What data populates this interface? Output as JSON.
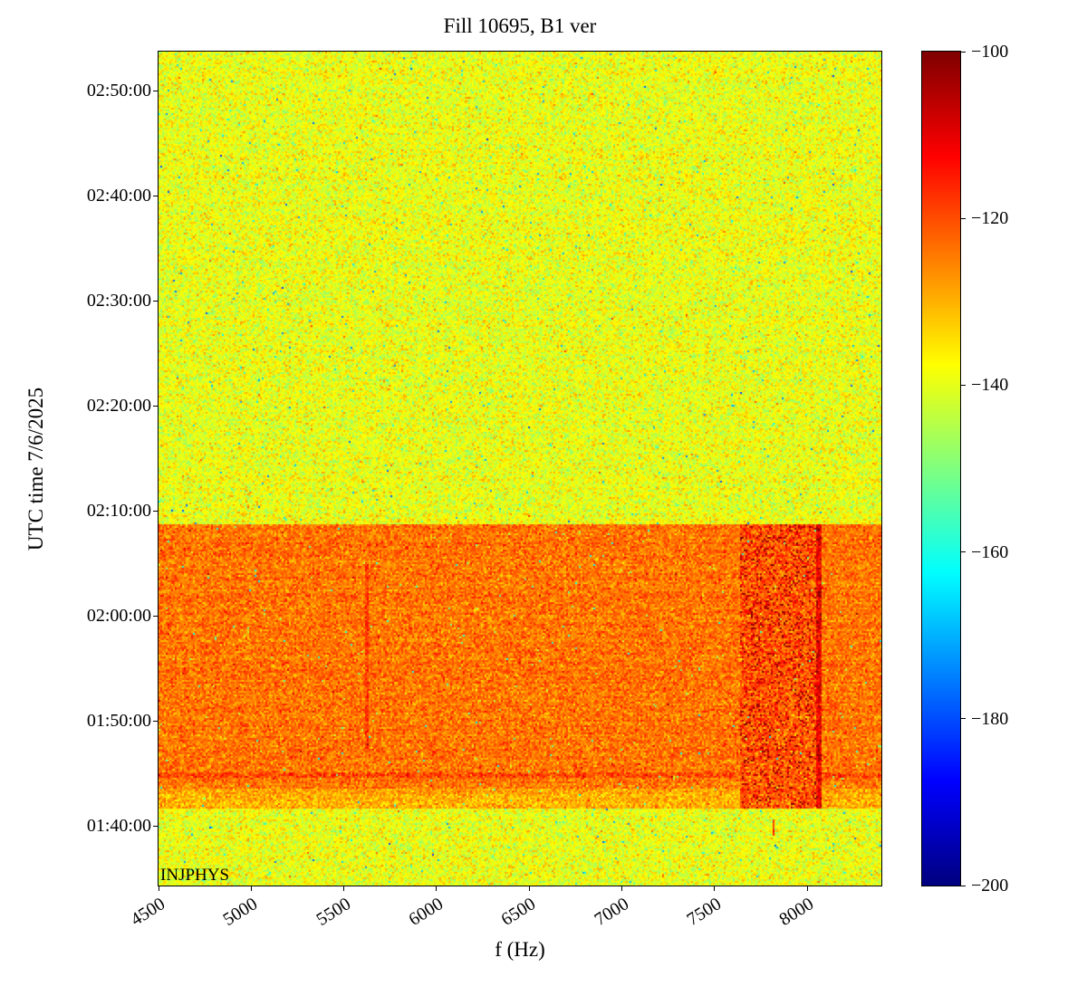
{
  "chart_data": {
    "type": "heatmap",
    "title": "Fill 10695, B1 ver",
    "xlabel": "f (Hz)",
    "ylabel": "UTC time 7/6/2025",
    "annotation": "INJPHYS",
    "colormap": "jet",
    "x_range": [
      4500,
      8400
    ],
    "x_ticks": [
      4500,
      5000,
      5500,
      6000,
      6500,
      7000,
      7500,
      8000
    ],
    "x_tick_labels": [
      "4500",
      "5000",
      "5500",
      "6000",
      "6500",
      "7000",
      "7500",
      "8000"
    ],
    "y_range": [
      "01:34:20",
      "02:53:45"
    ],
    "y_ticks": [
      "01:40:00",
      "01:50:00",
      "02:00:00",
      "02:10:00",
      "02:20:00",
      "02:30:00",
      "02:40:00",
      "02:50:00"
    ],
    "colorbar": {
      "min": -200,
      "max": -100,
      "ticks": [
        {
          "value": -100,
          "label": "−100"
        },
        {
          "value": -120,
          "label": "−120"
        },
        {
          "value": -140,
          "label": "−140"
        },
        {
          "value": -160,
          "label": "−160"
        },
        {
          "value": -180,
          "label": "−180"
        },
        {
          "value": -200,
          "label": "−200"
        }
      ]
    },
    "regions": [
      {
        "name": "quiet-background",
        "time": [
          "01:34:20",
          "02:53:45"
        ],
        "freq": [
          4500,
          8400
        ],
        "mean_db": -139.5,
        "sigma_db": 4.5
      },
      {
        "name": "injection-band",
        "time": [
          "01:41:40",
          "02:08:40"
        ],
        "freq": [
          4500,
          8400
        ],
        "mean_db": -124,
        "sigma_db": 4
      },
      {
        "name": "band-bottom-edge",
        "time": [
          "01:41:40",
          "01:43:30"
        ],
        "freq": [
          4500,
          8400
        ],
        "mean_db": -129.5,
        "sigma_db": 4
      },
      {
        "name": "horizontal-line",
        "time": [
          "01:44:40",
          "01:45:10"
        ],
        "freq": [
          4500,
          8400
        ],
        "mean_db": -120,
        "sigma_db": 4
      },
      {
        "name": "dark-streak-cluster",
        "time": [
          "01:41:40",
          "02:08:40"
        ],
        "freq": [
          7640,
          8060
        ],
        "mean_db": -121,
        "sigma_db": 5,
        "speckle_db": -104,
        "speckle_prob": 0.1
      },
      {
        "name": "vertical-line-5620",
        "time": [
          "01:47:00",
          "02:05:00"
        ],
        "freq": [
          5612,
          5630
        ],
        "mean_db": -118,
        "sigma_db": 4
      },
      {
        "name": "vertical-line-8060",
        "time": [
          "01:41:40",
          "02:08:40"
        ],
        "freq": [
          8050,
          8075
        ],
        "mean_db": -112,
        "sigma_db": 4,
        "speckle_db": -103,
        "speckle_prob": 0.15
      },
      {
        "name": "isolated-mark",
        "time": [
          "01:39:00",
          "01:40:40"
        ],
        "freq": [
          7810,
          7826
        ],
        "mean_db": -115,
        "sigma_db": 5
      }
    ]
  }
}
